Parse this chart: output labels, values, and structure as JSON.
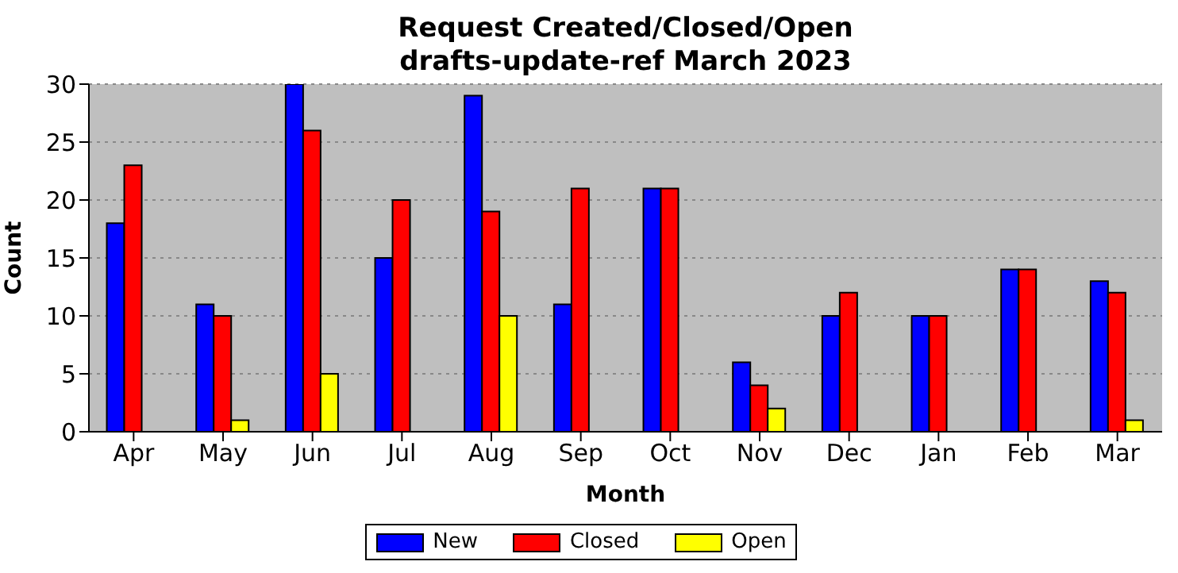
{
  "chart_data": {
    "type": "bar",
    "title": "Request Created/Closed/Open\ndrafts-update-ref March 2023",
    "xlabel": "Month",
    "ylabel": "Count",
    "categories": [
      "Apr",
      "May",
      "Jun",
      "Jul",
      "Aug",
      "Sep",
      "Oct",
      "Nov",
      "Dec",
      "Jan",
      "Feb",
      "Mar"
    ],
    "series": [
      {
        "name": "New",
        "color": "#0000ff",
        "values": [
          18,
          11,
          30,
          15,
          29,
          11,
          21,
          6,
          10,
          10,
          14,
          13
        ]
      },
      {
        "name": "Closed",
        "color": "#ff0000",
        "values": [
          23,
          10,
          26,
          20,
          19,
          21,
          21,
          4,
          12,
          10,
          14,
          12
        ]
      },
      {
        "name": "Open",
        "color": "#ffff00",
        "values": [
          0,
          1,
          5,
          0,
          10,
          0,
          0,
          2,
          0,
          0,
          0,
          1
        ]
      }
    ],
    "ylim": [
      0,
      30
    ],
    "yticks": [
      0,
      5,
      10,
      15,
      20,
      25,
      30
    ],
    "grid": "y",
    "legend": "bottom"
  }
}
